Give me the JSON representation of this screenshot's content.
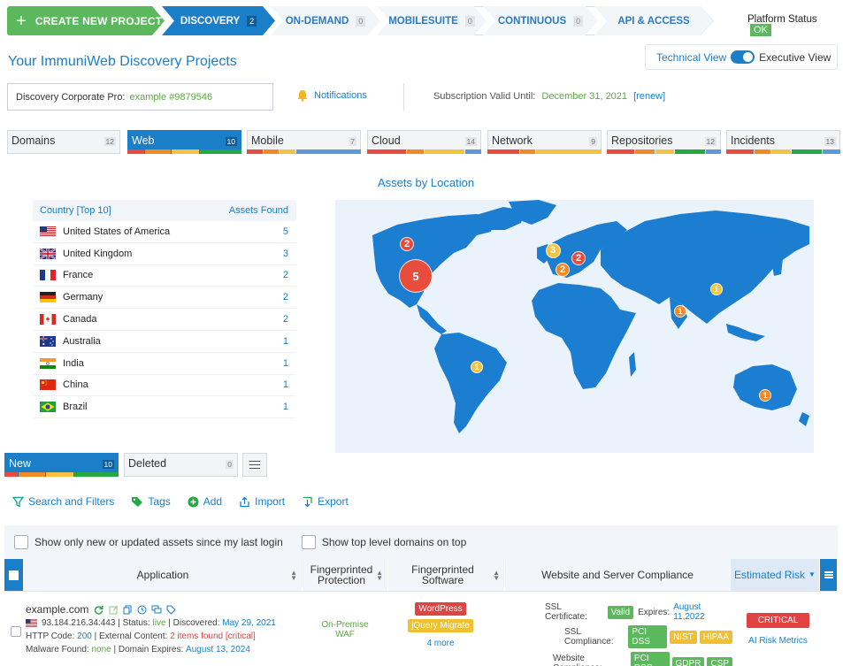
{
  "nav": {
    "create_label": "CREATE NEW PROJECT",
    "tabs": [
      {
        "label": "DISCOVERY",
        "count": "2"
      },
      {
        "label": "ON-DEMAND",
        "count": "0"
      },
      {
        "label": "MOBILESUITE",
        "count": "0"
      },
      {
        "label": "CONTINUOUS",
        "count": "0"
      },
      {
        "label": "API & ACCESS"
      }
    ],
    "platform_status_label": "Platform Status",
    "platform_status_value": "OK"
  },
  "page_title": "Your ImmuniWeb Discovery Projects",
  "view_toggle": {
    "technical": "Technical View",
    "executive": "Executive View"
  },
  "project": {
    "label": "Discovery Corporate Pro:",
    "name": "example #9879546",
    "notifications": "Notifications",
    "subscription_label": "Subscription Valid Until:",
    "subscription_date": "December 31, 2021",
    "renew": "[renew]"
  },
  "categories": [
    {
      "label": "Domains",
      "count": "12",
      "bars": []
    },
    {
      "label": "Web",
      "count": "10",
      "bars": [
        {
          "color": "#e84c3d",
          "w": 0.15
        },
        {
          "color": "#f08a24",
          "w": 0.23
        },
        {
          "color": "#f5c342",
          "w": 0.25
        },
        {
          "color": "#27a745",
          "w": 0.37
        }
      ]
    },
    {
      "label": "Mobile",
      "count": "7",
      "bars": [
        {
          "color": "#e84c3d",
          "w": 0.14
        },
        {
          "color": "#f08a24",
          "w": 0.14
        },
        {
          "color": "#f5c342",
          "w": 0.14
        },
        {
          "color": "#5b9bd5",
          "w": 0.58
        }
      ]
    },
    {
      "label": "Cloud",
      "count": "14",
      "bars": [
        {
          "color": "#e84c3d",
          "w": 0.35
        },
        {
          "color": "#f08a24",
          "w": 0.15
        },
        {
          "color": "#f5c342",
          "w": 0.36
        },
        {
          "color": "#5b9bd5",
          "w": 0.14
        }
      ]
    },
    {
      "label": "Network",
      "count": "9",
      "bars": [
        {
          "color": "#e84c3d",
          "w": 0.28
        },
        {
          "color": "#f08a24",
          "w": 0.14
        },
        {
          "color": "#f5c342",
          "w": 0.58
        }
      ]
    },
    {
      "label": "Repositories",
      "count": "12",
      "bars": [
        {
          "color": "#e84c3d",
          "w": 0.25
        },
        {
          "color": "#f08a24",
          "w": 0.17
        },
        {
          "color": "#f5c342",
          "w": 0.17
        },
        {
          "color": "#27a745",
          "w": 0.27
        },
        {
          "color": "#5b9bd5",
          "w": 0.14
        }
      ]
    },
    {
      "label": "Incidents",
      "count": "13",
      "bars": [
        {
          "color": "#e84c3d",
          "w": 0.25
        },
        {
          "color": "#f08a24",
          "w": 0.14
        },
        {
          "color": "#f5c342",
          "w": 0.18
        },
        {
          "color": "#27a745",
          "w": 0.27
        },
        {
          "color": "#5b9bd5",
          "w": 0.16
        }
      ]
    }
  ],
  "assets_title": "Assets by Location",
  "country_table": {
    "col_country": "Country [Top 10]",
    "col_assets": "Assets Found",
    "rows": [
      {
        "name": "United States of America",
        "count": "5",
        "flag": "us"
      },
      {
        "name": "United Kingdom",
        "count": "3",
        "flag": "uk"
      },
      {
        "name": "France",
        "count": "2",
        "flag": "fr"
      },
      {
        "name": "Germany",
        "count": "2",
        "flag": "de"
      },
      {
        "name": "Canada",
        "count": "2",
        "flag": "ca"
      },
      {
        "name": "Australia",
        "count": "1",
        "flag": "au"
      },
      {
        "name": "India",
        "count": "1",
        "flag": "in"
      },
      {
        "name": "China",
        "count": "1",
        "flag": "cn"
      },
      {
        "name": "Brazil",
        "count": "1",
        "flag": "br"
      }
    ]
  },
  "map_bubbles": [
    {
      "country": "United States of America",
      "count": "5",
      "color": "#e84c3d"
    },
    {
      "country": "Canada",
      "count": "2",
      "color": "#e84c3d"
    },
    {
      "country": "United Kingdom",
      "count": "3",
      "color": "#f5c342"
    },
    {
      "country": "Germany",
      "count": "2",
      "color": "#e84c3d"
    },
    {
      "country": "France",
      "count": "2",
      "color": "#f08a24"
    },
    {
      "country": "China",
      "count": "1",
      "color": "#f5c342"
    },
    {
      "country": "India",
      "count": "1",
      "color": "#f08a24"
    },
    {
      "country": "Brazil",
      "count": "1",
      "color": "#f5c342"
    },
    {
      "country": "Australia",
      "count": "1",
      "color": "#f08a24"
    }
  ],
  "list_tabs": [
    {
      "label": "New",
      "count": "10"
    },
    {
      "label": "Deleted",
      "count": "0"
    }
  ],
  "toolbar": {
    "search": "Search and Filters",
    "tags": "Tags",
    "add": "Add",
    "import": "Import",
    "export": "Export"
  },
  "filters": {
    "only_new": "Show only new or updated assets since my last login",
    "top_level": "Show top level domains on top"
  },
  "table": {
    "headers": {
      "application": "Application",
      "fp_protection": "Fingerprinted Protection",
      "fp_software": "Fingerprinted Software",
      "compliance": "Website and Server Compliance",
      "risk": "Estimated Risk"
    },
    "row": {
      "domain": "example.com",
      "ip": "93.184.216.34:443",
      "status_label": "| Status:",
      "status": "live",
      "discovered_label": "| Discovered:",
      "discovered": "May 29, 2021",
      "http_label": "HTTP Code:",
      "http_code": "200",
      "ext_label": "| External Content:",
      "ext_value": "2 items found [critical]",
      "malware_label": "Malware Found:",
      "malware": "none",
      "expires_label": "| Domain Expires:",
      "expires": "August 13, 2024",
      "protection": "On-Premise WAF",
      "software": [
        "WordPress",
        "jQuery Migrate"
      ],
      "more": "4 more",
      "ssl_cert_label": "SSL Certificate:",
      "ssl_cert": "Valid",
      "ssl_expires_label": "Expires:",
      "ssl_expires": "August 11,2022",
      "ssl_comp_label": "SSL Compliance:",
      "ssl_comp": [
        "PCI DSS",
        "NIST",
        "HIPAA"
      ],
      "web_comp_label": "Website Compliance:",
      "web_comp": [
        "PCI DSS",
        "GDPR",
        "CSP"
      ],
      "risk": "CRITICAL",
      "risk_link": "AI Risk Metrics"
    }
  }
}
